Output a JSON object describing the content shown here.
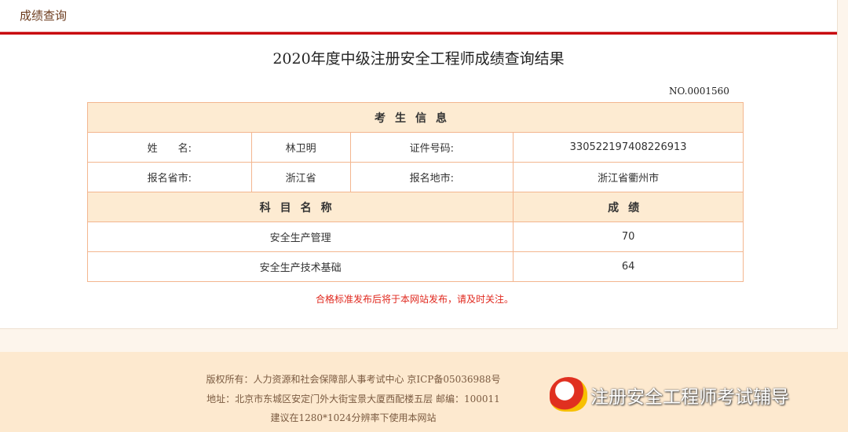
{
  "header": {
    "title": "成绩查询"
  },
  "main": {
    "title": "2020年度中级注册安全工程师成绩查询结果",
    "number": "NO.0001560",
    "info_heading": "考生信息",
    "labels": {
      "name": "姓　　名:",
      "id": "证件号码:",
      "province": "报名省市:",
      "city": "报名地市:"
    },
    "values": {
      "name": "林卫明",
      "id": "330522197408226913",
      "province": "浙江省",
      "city": "浙江省衢州市"
    },
    "score_headers": {
      "subject": "科目名称",
      "score": "成绩"
    },
    "scores": [
      {
        "subject": "安全生产管理",
        "score": "70"
      },
      {
        "subject": "安全生产技术基础",
        "score": "64"
      }
    ],
    "note": "合格标准发布后将于本网站发布，请及时关注。"
  },
  "footer": {
    "copyright": "版权所有：人力资源和社会保障部人事考试中心  京ICP备05036988号",
    "address": "地址：北京市东城区安定门外大街宝景大厦西配楼五层  邮编：100011",
    "resolution": "建议在1280*1024分辨率下使用本网站"
  },
  "watermark": {
    "text": "注册安全工程师考试辅导"
  },
  "colors": {
    "accent_red": "#c8000a",
    "header_bg": "#fdebd2",
    "border": "#f3b68f",
    "footer_bg": "#fde9cf",
    "note": "#e0281e"
  }
}
